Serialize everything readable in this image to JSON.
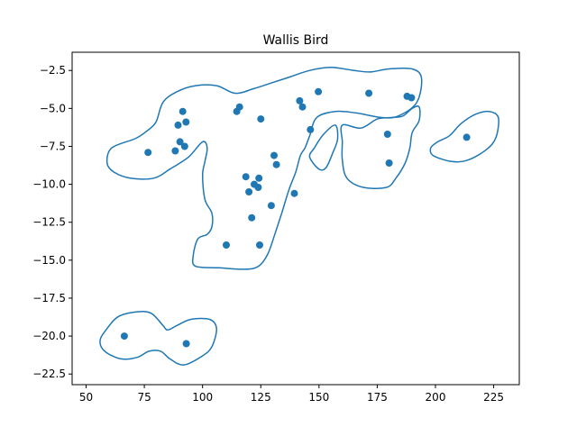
{
  "chart_data": {
    "type": "scatter",
    "title": "Wallis Bird",
    "xlabel": "",
    "ylabel": "",
    "xlim": [
      44,
      236
    ],
    "ylim": [
      -23.2,
      -1.3
    ],
    "x_ticks": [
      50,
      75,
      100,
      125,
      150,
      175,
      200,
      225
    ],
    "y_ticks": [
      -2.5,
      -5.0,
      -7.5,
      -10.0,
      -12.5,
      -15.0,
      -17.5,
      -20.0,
      -22.5
    ],
    "x_tick_labels": [
      "50",
      "75",
      "100",
      "125",
      "150",
      "175",
      "200",
      "225"
    ],
    "y_tick_labels": [
      "−2.5",
      "−5.0",
      "−7.5",
      "−10.0",
      "−12.5",
      "−15.0",
      "−17.5",
      "−20.0",
      "−22.5"
    ],
    "grid": false,
    "color": "#1f77b4",
    "points": [
      [
        66.4,
        -20.0
      ],
      [
        93.0,
        -20.5
      ],
      [
        76.6,
        -7.9
      ],
      [
        88.3,
        -7.8
      ],
      [
        89.5,
        -6.1
      ],
      [
        90.3,
        -7.2
      ],
      [
        91.5,
        -5.2
      ],
      [
        92.3,
        -7.5
      ],
      [
        92.9,
        -5.9
      ],
      [
        110.2,
        -14.0
      ],
      [
        114.7,
        -5.2
      ],
      [
        115.9,
        -4.9
      ],
      [
        118.6,
        -9.5
      ],
      [
        119.9,
        -10.5
      ],
      [
        121.1,
        -12.2
      ],
      [
        122.2,
        -10.0
      ],
      [
        123.9,
        -10.2
      ],
      [
        124.2,
        -9.6
      ],
      [
        124.5,
        -14.0
      ],
      [
        125.0,
        -5.7
      ],
      [
        129.5,
        -11.4
      ],
      [
        130.7,
        -8.1
      ],
      [
        131.7,
        -8.7
      ],
      [
        139.4,
        -10.6
      ],
      [
        141.7,
        -4.5
      ],
      [
        142.9,
        -4.9
      ],
      [
        146.3,
        -6.4
      ],
      [
        149.7,
        -3.9
      ],
      [
        171.4,
        -4.0
      ],
      [
        179.4,
        -6.7
      ],
      [
        180.1,
        -8.6
      ],
      [
        187.8,
        -4.2
      ],
      [
        189.7,
        -4.3
      ],
      [
        213.4,
        -6.9
      ]
    ],
    "contours": [
      [
        [
          155,
          -2.3
        ],
        [
          165,
          -2.5
        ],
        [
          172,
          -2.6
        ],
        [
          180,
          -2.4
        ],
        [
          190,
          -2.4
        ],
        [
          194,
          -3.0
        ],
        [
          192,
          -4.6
        ],
        [
          184,
          -5.5
        ],
        [
          177,
          -5.6
        ],
        [
          166,
          -5.3
        ],
        [
          157,
          -5.2
        ],
        [
          149,
          -5.6
        ],
        [
          146,
          -6.8
        ],
        [
          144,
          -7.6
        ],
        [
          142,
          -8.1
        ],
        [
          140,
          -9.2
        ],
        [
          137,
          -10.4
        ],
        [
          134,
          -11.9
        ],
        [
          131,
          -13.3
        ],
        [
          128,
          -14.6
        ],
        [
          124,
          -15.4
        ],
        [
          118,
          -15.6
        ],
        [
          107,
          -15.5
        ],
        [
          97,
          -15.4
        ],
        [
          96,
          -14.7
        ],
        [
          98,
          -13.6
        ],
        [
          102,
          -13.3
        ],
        [
          104,
          -12.8
        ],
        [
          104,
          -11.9
        ],
        [
          101,
          -11.0
        ],
        [
          100,
          -9.4
        ],
        [
          101,
          -8.5
        ],
        [
          102,
          -7.6
        ],
        [
          100,
          -7.2
        ],
        [
          94,
          -8.2
        ],
        [
          86,
          -9.0
        ],
        [
          79,
          -9.6
        ],
        [
          69,
          -9.6
        ],
        [
          62,
          -9.2
        ],
        [
          59,
          -8.6
        ],
        [
          61,
          -7.6
        ],
        [
          71,
          -7.0
        ],
        [
          76,
          -6.5
        ],
        [
          80,
          -5.9
        ],
        [
          83,
          -4.6
        ],
        [
          89,
          -3.9
        ],
        [
          97,
          -3.5
        ],
        [
          106,
          -3.5
        ],
        [
          114,
          -4.0
        ],
        [
          122,
          -3.7
        ],
        [
          130,
          -3.3
        ],
        [
          138,
          -2.9
        ],
        [
          146,
          -2.5
        ],
        [
          155,
          -2.3
        ]
      ],
      [
        [
          160,
          -6.1
        ],
        [
          168,
          -6.3
        ],
        [
          175,
          -5.7
        ],
        [
          181,
          -5.6
        ],
        [
          186,
          -5.5
        ],
        [
          190,
          -5.0
        ],
        [
          193,
          -4.9
        ],
        [
          193,
          -5.8
        ],
        [
          190,
          -6.6
        ],
        [
          189,
          -7.6
        ],
        [
          187,
          -8.6
        ],
        [
          183,
          -9.6
        ],
        [
          179,
          -10.2
        ],
        [
          169,
          -10.2
        ],
        [
          162,
          -9.6
        ],
        [
          160,
          -8.4
        ],
        [
          160,
          -7.2
        ],
        [
          160,
          -6.1
        ]
      ],
      [
        [
          150,
          -9.0
        ],
        [
          146,
          -8.2
        ],
        [
          148,
          -7.6
        ],
        [
          152,
          -6.7
        ],
        [
          157,
          -6.1
        ],
        [
          158,
          -7.0
        ],
        [
          156,
          -7.9
        ],
        [
          153,
          -8.9
        ],
        [
          150,
          -9.0
        ]
      ],
      [
        [
          206,
          -6.8
        ],
        [
          211,
          -6.0
        ],
        [
          217,
          -5.4
        ],
        [
          223,
          -5.2
        ],
        [
          227,
          -5.6
        ],
        [
          226,
          -6.9
        ],
        [
          222,
          -7.7
        ],
        [
          214,
          -8.4
        ],
        [
          207,
          -8.5
        ],
        [
          199,
          -8.1
        ],
        [
          198,
          -7.6
        ],
        [
          201,
          -7.2
        ],
        [
          206,
          -6.8
        ]
      ],
      [
        [
          64,
          -18.7
        ],
        [
          72,
          -18.4
        ],
        [
          78,
          -18.5
        ],
        [
          83,
          -19.3
        ],
        [
          85,
          -19.6
        ],
        [
          89,
          -19.3
        ],
        [
          95,
          -18.9
        ],
        [
          103,
          -18.9
        ],
        [
          106,
          -19.5
        ],
        [
          104,
          -20.7
        ],
        [
          100,
          -21.3
        ],
        [
          92,
          -21.9
        ],
        [
          86,
          -21.5
        ],
        [
          82,
          -21.0
        ],
        [
          77,
          -21.0
        ],
        [
          72,
          -21.4
        ],
        [
          65,
          -21.5
        ],
        [
          58,
          -21.0
        ],
        [
          56,
          -20.3
        ],
        [
          59,
          -19.5
        ],
        [
          64,
          -18.7
        ]
      ]
    ]
  }
}
